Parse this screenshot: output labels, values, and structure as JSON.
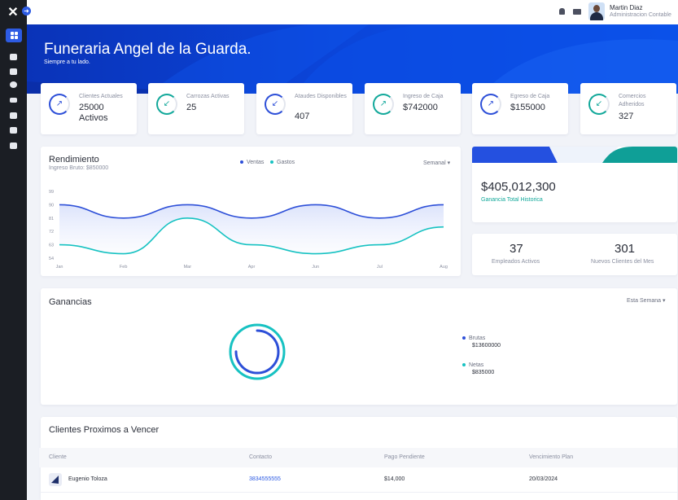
{
  "app": {
    "hero_title": "Funeraria Angel de la Guarda.",
    "hero_subtitle": "Siempre a tu lado."
  },
  "user": {
    "name": "Martin Diaz",
    "role": "Administracion Contable"
  },
  "stats": [
    {
      "label": "Clientes Actuales",
      "value": "25000 Activos",
      "color": "#2d4fd8"
    },
    {
      "label": "Carrozas Activas",
      "value": "25",
      "color": "#12a89a"
    },
    {
      "label": "Ataudes Disponibles",
      "value": "407",
      "color": "#2d4fd8"
    },
    {
      "label": "Ingreso de Caja",
      "value": "$742000",
      "color": "#12a89a"
    },
    {
      "label": "Egreso de Caja",
      "value": "$155000",
      "color": "#2d4fd8"
    },
    {
      "label": "Comercios Adheridos",
      "value": "327",
      "color": "#12a89a"
    }
  ],
  "rendimiento": {
    "title": "Rendimiento",
    "subtitle": "Ingreso Bruto: $850000",
    "legend_ventas": "Ventas",
    "legend_gastos": "Gastos",
    "period": "Semanal"
  },
  "chart_data": {
    "type": "line",
    "x": [
      "Jan",
      "Feb",
      "Mar",
      "Apr",
      "Jun",
      "Jul",
      "Aug"
    ],
    "ylim": [
      54,
      99
    ],
    "yticks": [
      "99",
      "90",
      "81",
      "72",
      "63",
      "54"
    ],
    "series": [
      {
        "name": "Ventas",
        "color": "#2d4fd8",
        "values": [
          90,
          81,
          90,
          81,
          90,
          81,
          90
        ]
      },
      {
        "name": "Gastos",
        "color": "#17c2c2",
        "values": [
          63,
          57,
          81,
          63,
          57,
          63,
          75
        ]
      }
    ]
  },
  "ganancia": {
    "amount": "$405,012,300",
    "label": "Ganancia Total Historica"
  },
  "empleados": {
    "value": "37",
    "label": "Empleados Activos"
  },
  "nuevos": {
    "value": "301",
    "label": "Nuevos Clientes del Mes"
  },
  "ganancias": {
    "title": "Ganancias",
    "period": "Esta Semana",
    "brutas_label": "Brutas",
    "brutas_value": "$13600000",
    "netas_label": "Netas",
    "netas_value": "$835000",
    "brutas_ratio": 0.75,
    "netas_ratio": 0.6
  },
  "table": {
    "title": "Clientes Proximos a Vencer",
    "headers": [
      "Cliente",
      "Contacto",
      "Pago Pendiente",
      "Vencimiento Plan"
    ],
    "rows": [
      {
        "cliente": "Eugenio Toloza",
        "contacto": "3834555555",
        "pago": "$14,000",
        "vencimiento": "20/03/2024"
      }
    ]
  }
}
